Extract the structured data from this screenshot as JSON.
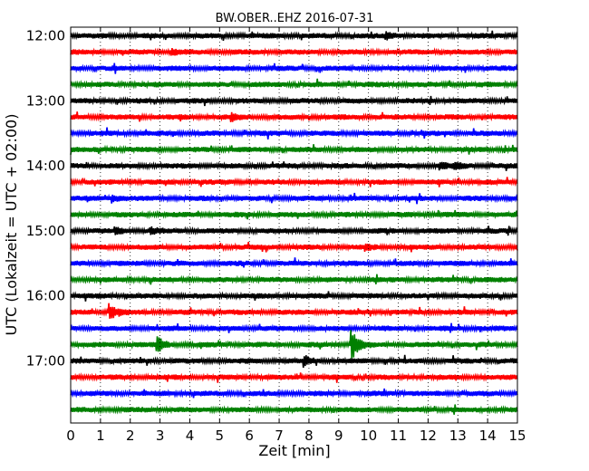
{
  "chart_data": {
    "type": "line",
    "title": "BW.OBER..EHZ 2016-07-31",
    "xlabel": "Zeit  [min]",
    "ylabel": "UTC (Lokalzeit = UTC + 02:00)",
    "xlim": [
      0,
      15
    ],
    "x_ticks": [
      0,
      1,
      2,
      3,
      4,
      5,
      6,
      7,
      8,
      9,
      10,
      11,
      12,
      13,
      14,
      15
    ],
    "y_tick_labels": [
      "12:00",
      "13:00",
      "14:00",
      "15:00",
      "16:00",
      "17:00"
    ],
    "rows_per_hour": 4,
    "row_minutes": 15,
    "start_hour": "12:00",
    "end_hour": "18:00",
    "grid": "vertical dotted",
    "row_colors": [
      "#000000",
      "#ff0000",
      "#0000ff",
      "#008000"
    ],
    "events": [
      {
        "row": 0,
        "minute": 10.6,
        "amp": 0.45
      },
      {
        "row": 1,
        "minute": 3.4,
        "amp": 0.25
      },
      {
        "row": 5,
        "minute": 5.4,
        "amp": 0.35
      },
      {
        "row": 8,
        "minute": 12.4,
        "amp": 0.35
      },
      {
        "row": 8,
        "minute": 12.9,
        "amp": 0.35
      },
      {
        "row": 10,
        "minute": 1.4,
        "amp": 0.4
      },
      {
        "row": 12,
        "minute": 1.5,
        "amp": 0.3
      },
      {
        "row": 12,
        "minute": 2.7,
        "amp": 0.3
      },
      {
        "row": 13,
        "minute": 9.9,
        "amp": 0.3
      },
      {
        "row": 17,
        "minute": 1.3,
        "amp": 0.9
      },
      {
        "row": 19,
        "minute": 2.9,
        "amp": 0.9
      },
      {
        "row": 19,
        "minute": 9.45,
        "amp": 1.7
      },
      {
        "row": 20,
        "minute": 7.85,
        "amp": 0.5
      }
    ]
  }
}
